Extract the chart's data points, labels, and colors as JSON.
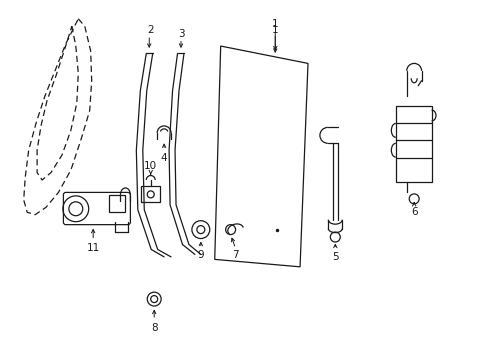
{
  "bg_color": "#ffffff",
  "line_color": "#1a1a1a",
  "figsize": [
    4.89,
    3.6
  ],
  "dpi": 100,
  "xlim": [
    0,
    9.8
  ],
  "ylim": [
    0,
    7.2
  ]
}
